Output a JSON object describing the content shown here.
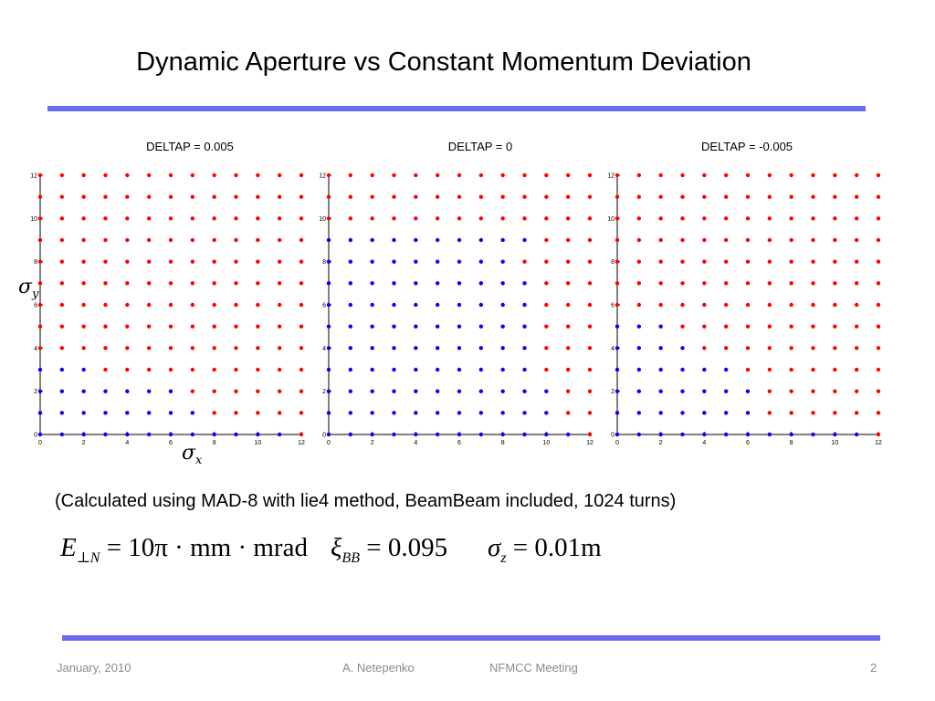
{
  "slide": {
    "title": "Dynamic Aperture vs Constant Momentum Deviation",
    "note": "(Calculated using MAD-8 with lie4 method, BeamBeam included, 1024 turns)",
    "formula": {
      "e_sym": "E",
      "e_sub": "⊥N",
      "e_rhs": "= 10π · mm · mrad",
      "xi_sym": "ξ",
      "xi_sub": "BB",
      "xi_rhs": "= 0.095",
      "sz_sym": "σ",
      "sz_sub": "z",
      "sz_rhs": "= 0.01m"
    },
    "axis_symbols": {
      "y_sym": "σ",
      "y_sub": "y",
      "x_sym": "σ",
      "x_sub": "x"
    },
    "footer": {
      "date": "January, 2010",
      "author": "A. Netepenko",
      "meeting": "NFMCC Meeting",
      "page": "2"
    }
  },
  "colors": {
    "rule": "#6b6bf0",
    "stable": "#0000ff",
    "lost": "#ff0000"
  },
  "chart_data": [
    {
      "type": "scatter",
      "title": "DELTAP = 0.005",
      "xlim": [
        0,
        12
      ],
      "ylim": [
        0,
        12
      ],
      "x_ticks": [
        0,
        2,
        4,
        6,
        8,
        10,
        12
      ],
      "y_ticks": [
        0,
        2,
        4,
        6,
        8,
        10,
        12
      ],
      "grid_x": [
        0,
        1,
        2,
        3,
        4,
        5,
        6,
        7,
        8,
        9,
        10,
        11,
        12
      ],
      "grid_y": [
        0,
        1,
        2,
        3,
        4,
        5,
        6,
        7,
        8,
        9,
        10,
        11,
        12
      ],
      "series": [
        {
          "color": "#0000ff",
          "row_max_x": [
            12,
            8,
            7,
            3,
            0,
            0,
            0,
            0,
            0,
            0,
            0,
            0,
            0
          ]
        }
      ]
    },
    {
      "type": "scatter",
      "title": "DELTAP = 0",
      "xlim": [
        0,
        12
      ],
      "ylim": [
        0,
        12
      ],
      "x_ticks": [
        0,
        2,
        4,
        6,
        8,
        10,
        12
      ],
      "y_ticks": [
        0,
        2,
        4,
        6,
        8,
        10,
        12
      ],
      "grid_x": [
        0,
        1,
        2,
        3,
        4,
        5,
        6,
        7,
        8,
        9,
        10,
        11,
        12
      ],
      "grid_y": [
        0,
        1,
        2,
        3,
        4,
        5,
        6,
        7,
        8,
        9,
        10,
        11,
        12
      ],
      "series": [
        {
          "color": "#0000ff",
          "row_max_x": [
            12,
            11,
            11,
            10,
            10,
            10,
            10,
            10,
            9,
            10,
            0,
            0,
            0
          ]
        }
      ]
    },
    {
      "type": "scatter",
      "title": "DELTAP = -0.005",
      "xlim": [
        0,
        12
      ],
      "ylim": [
        0,
        12
      ],
      "x_ticks": [
        0,
        2,
        4,
        6,
        8,
        10,
        12
      ],
      "y_ticks": [
        0,
        2,
        4,
        6,
        8,
        10,
        12
      ],
      "grid_x": [
        0,
        1,
        2,
        3,
        4,
        5,
        6,
        7,
        8,
        9,
        10,
        11,
        12
      ],
      "grid_y": [
        0,
        1,
        2,
        3,
        4,
        5,
        6,
        7,
        8,
        9,
        10,
        11,
        12
      ],
      "series": [
        {
          "color": "#0000ff",
          "row_max_x": [
            12,
            7,
            7,
            6,
            4,
            3,
            0,
            0,
            0,
            0,
            0,
            0,
            0
          ]
        }
      ]
    }
  ]
}
